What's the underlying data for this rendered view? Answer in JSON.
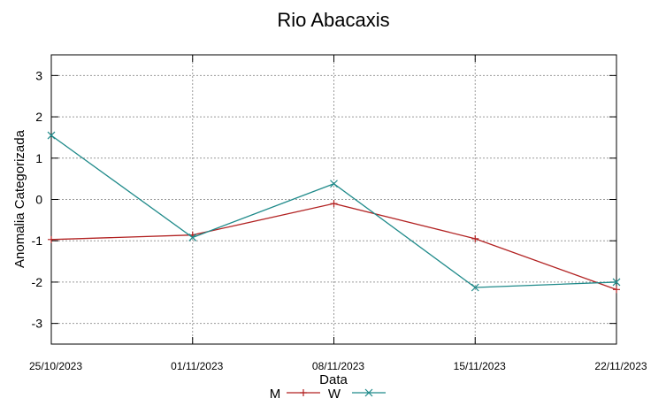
{
  "chart_data": {
    "type": "line",
    "title": "Rio Abacaxis",
    "xlabel": "Data",
    "ylabel": "Anomalia Categorizada",
    "categories": [
      "25/10/2023",
      "01/11/2023",
      "08/11/2023",
      "15/11/2023",
      "22/11/2023"
    ],
    "ylim": [
      -3.5,
      3.5
    ],
    "yticks": [
      "3",
      "2",
      "1",
      "0",
      "-1",
      "-2",
      "-3"
    ],
    "ytick_values": [
      3,
      2,
      1,
      0,
      -1,
      -2,
      -3
    ],
    "grid": true,
    "legend_position": "bottom-center",
    "series": [
      {
        "name": "M",
        "marker": "+",
        "color": "#b22222",
        "values": [
          -0.97,
          -0.86,
          -0.1,
          -0.95,
          -2.18
        ]
      },
      {
        "name": "W",
        "marker": "x",
        "color": "#1f8a8a",
        "values": [
          1.55,
          -0.92,
          0.38,
          -2.13,
          -2.0
        ]
      }
    ]
  }
}
